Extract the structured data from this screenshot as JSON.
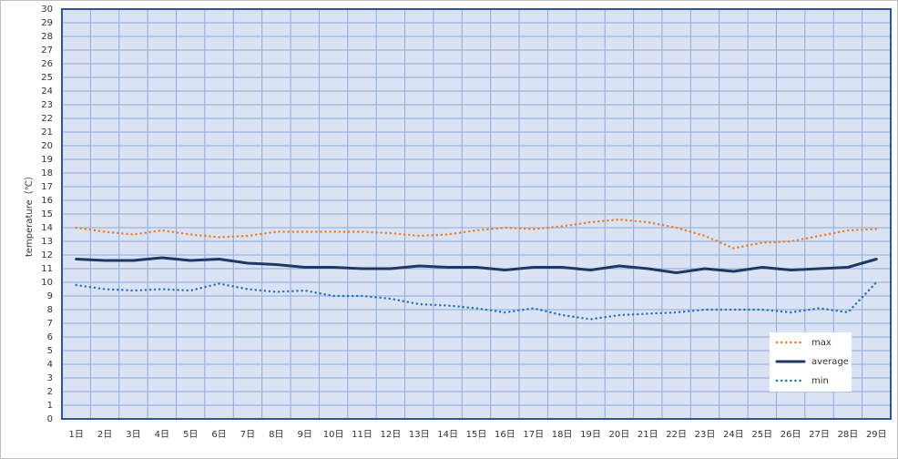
{
  "chart_data": {
    "type": "line",
    "y_label": "temperature（℃）",
    "categories": [
      "1日",
      "2日",
      "3日",
      "4日",
      "5日",
      "6日",
      "7日",
      "8日",
      "9日",
      "10日",
      "11日",
      "12日",
      "13日",
      "14日",
      "15日",
      "16日",
      "17日",
      "18日",
      "19日",
      "20日",
      "21日",
      "22日",
      "23日",
      "24日",
      "25日",
      "26日",
      "27日",
      "28日",
      "29日"
    ],
    "series": [
      {
        "name": "max",
        "color": "#ed7d31",
        "line_style": "dotted",
        "values": [
          14.0,
          13.7,
          13.5,
          13.8,
          13.5,
          13.3,
          13.4,
          13.7,
          13.7,
          13.7,
          13.7,
          13.6,
          13.4,
          13.5,
          13.8,
          14.0,
          13.9,
          14.1,
          14.4,
          14.6,
          14.4,
          14.0,
          13.4,
          12.5,
          12.9,
          13.0,
          13.4,
          13.8,
          13.9
        ]
      },
      {
        "name": "average",
        "color": "#203864",
        "line_style": "solid",
        "values": [
          11.7,
          11.6,
          11.6,
          11.8,
          11.6,
          11.7,
          11.4,
          11.3,
          11.1,
          11.1,
          11.0,
          11.0,
          11.2,
          11.1,
          11.1,
          10.9,
          11.1,
          11.1,
          10.9,
          11.2,
          11.0,
          10.7,
          11.0,
          10.8,
          11.1,
          10.9,
          11.0,
          11.1,
          11.7
        ]
      },
      {
        "name": "min",
        "color": "#2e75b6",
        "line_style": "dotted",
        "values": [
          9.8,
          9.5,
          9.4,
          9.5,
          9.4,
          9.9,
          9.5,
          9.3,
          9.4,
          9.0,
          9.0,
          8.8,
          8.4,
          8.3,
          8.1,
          7.8,
          8.1,
          7.6,
          7.3,
          7.6,
          7.7,
          7.8,
          8.0,
          8.0,
          8.0,
          7.8,
          8.1,
          7.8,
          10.0
        ]
      }
    ],
    "ylim": [
      0,
      30
    ],
    "yticks": [
      0,
      1,
      2,
      3,
      4,
      5,
      6,
      7,
      8,
      9,
      10,
      11,
      12,
      13,
      14,
      15,
      16,
      17,
      18,
      19,
      20,
      21,
      22,
      23,
      24,
      25,
      26,
      27,
      28,
      29,
      30
    ],
    "grid": true,
    "legend": "lower right"
  }
}
